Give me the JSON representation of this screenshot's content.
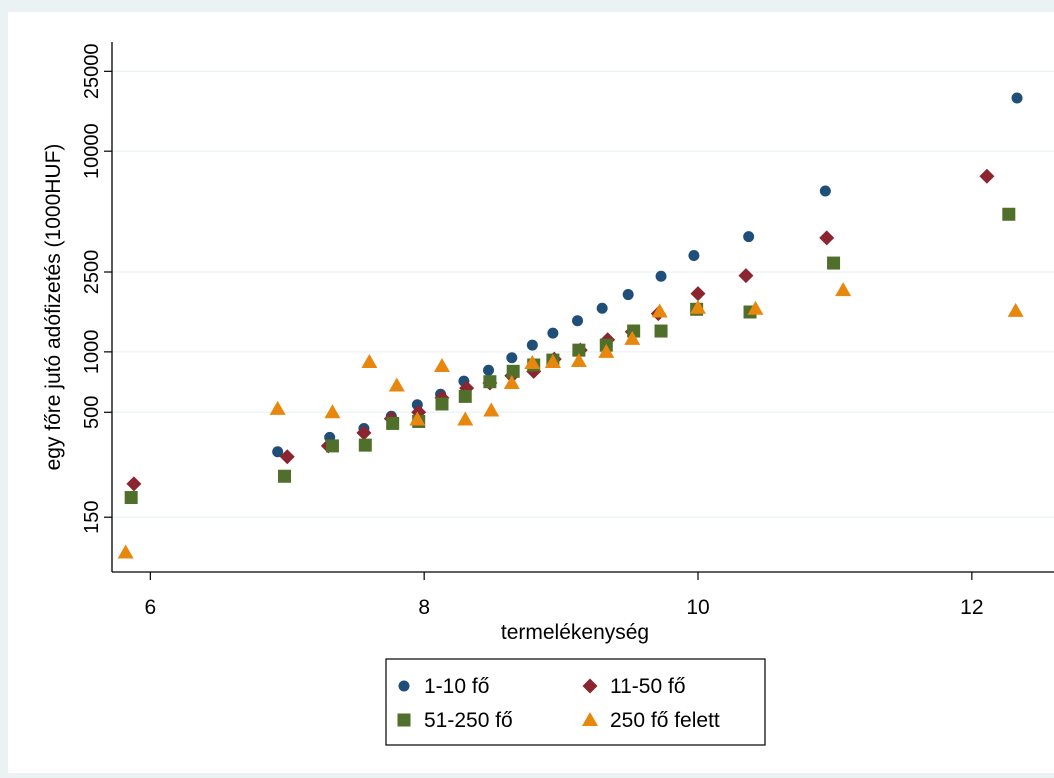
{
  "chart_data": {
    "type": "scatter",
    "xlabel": "termelékenység",
    "ylabel": "egy főre jutó adófizetés (1000HUF)",
    "y_scale": "log",
    "xlim": [
      5.72,
      12.6
    ],
    "ylim": [
      80,
      35000
    ],
    "x_ticks": [
      6,
      8,
      10,
      12
    ],
    "x_tick_labels": [
      "6",
      "8",
      "10",
      "12"
    ],
    "y_ticks": [
      150,
      500,
      1000,
      2500,
      10000,
      25000
    ],
    "y_tick_labels": [
      "150",
      "500",
      "1000",
      "2500",
      "10000",
      "25000"
    ],
    "grid": "horizontal",
    "legend": {
      "position": "bottom",
      "columns": 2
    },
    "series": [
      {
        "name": "1-10 fő",
        "marker": "circle",
        "color": "#1f4e79",
        "x": [
          6.93,
          7.31,
          7.56,
          7.76,
          7.95,
          8.12,
          8.29,
          8.47,
          8.64,
          8.79,
          8.94,
          9.12,
          9.3,
          9.49,
          9.73,
          9.97,
          10.37,
          10.93,
          12.33
        ],
        "y": [
          318,
          375,
          415,
          478,
          545,
          615,
          715,
          810,
          935,
          1080,
          1240,
          1430,
          1650,
          1930,
          2380,
          3020,
          3750,
          6330,
          18400
        ]
      },
      {
        "name": "11-50 fő",
        "marker": "diamond",
        "color": "#8b2530",
        "x": [
          5.88,
          7.0,
          7.3,
          7.56,
          7.76,
          7.96,
          8.13,
          8.31,
          8.48,
          8.64,
          8.8,
          8.95,
          9.14,
          9.34,
          9.52,
          9.71,
          10.0,
          10.35,
          10.94,
          12.11
        ],
        "y": [
          220,
          300,
          340,
          395,
          465,
          500,
          590,
          660,
          700,
          760,
          800,
          920,
          1020,
          1150,
          1260,
          1550,
          1950,
          2400,
          3700,
          7500
        ]
      },
      {
        "name": "51-250 fő",
        "marker": "square",
        "color": "#4f6f2b",
        "x": [
          5.86,
          6.98,
          7.33,
          7.57,
          7.77,
          7.96,
          8.13,
          8.3,
          8.48,
          8.65,
          8.8,
          8.94,
          9.13,
          9.33,
          9.53,
          9.73,
          9.99,
          10.38,
          10.99,
          12.27
        ],
        "y": [
          188,
          240,
          340,
          343,
          440,
          450,
          550,
          600,
          710,
          800,
          860,
          910,
          1020,
          1080,
          1270,
          1270,
          1630,
          1580,
          2770,
          4850
        ]
      },
      {
        "name": "250 fő felett",
        "marker": "triangle",
        "color": "#e8870e",
        "x": [
          5.82,
          6.93,
          7.33,
          7.6,
          7.8,
          7.95,
          8.13,
          8.3,
          8.49,
          8.64,
          8.79,
          8.94,
          9.13,
          9.33,
          9.52,
          9.72,
          10.0,
          10.42,
          11.06,
          12.32
        ],
        "y": [
          100,
          520,
          500,
          890,
          680,
          460,
          850,
          460,
          510,
          700,
          880,
          890,
          900,
          1000,
          1160,
          1590,
          1660,
          1640,
          2030,
          1600
        ]
      }
    ]
  }
}
